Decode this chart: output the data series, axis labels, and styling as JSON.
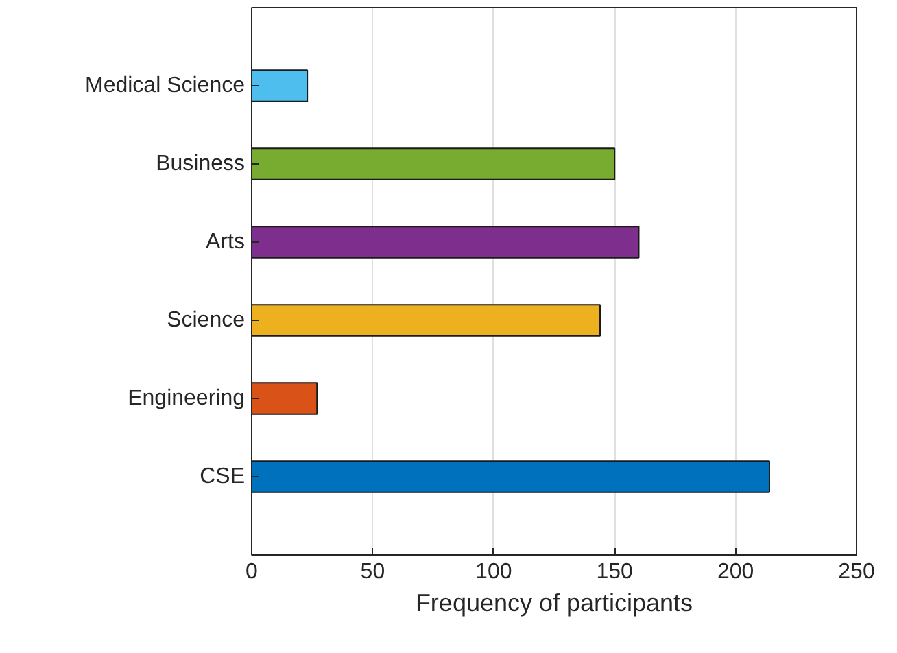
{
  "chart_data": {
    "type": "bar",
    "orientation": "horizontal",
    "xlabel": "Frequency of participants",
    "categories": [
      "Medical Science",
      "Business",
      "Arts",
      "Science",
      "Engineering",
      "CSE"
    ],
    "values": [
      23,
      150,
      160,
      144,
      27,
      214
    ],
    "colors": [
      "#4dbeee",
      "#77ac30",
      "#7e2f8e",
      "#edb120",
      "#d95319",
      "#0072bd"
    ],
    "xlim": [
      0,
      250
    ],
    "xticks": [
      0,
      50,
      100,
      150,
      200,
      250
    ],
    "grid": "x"
  }
}
